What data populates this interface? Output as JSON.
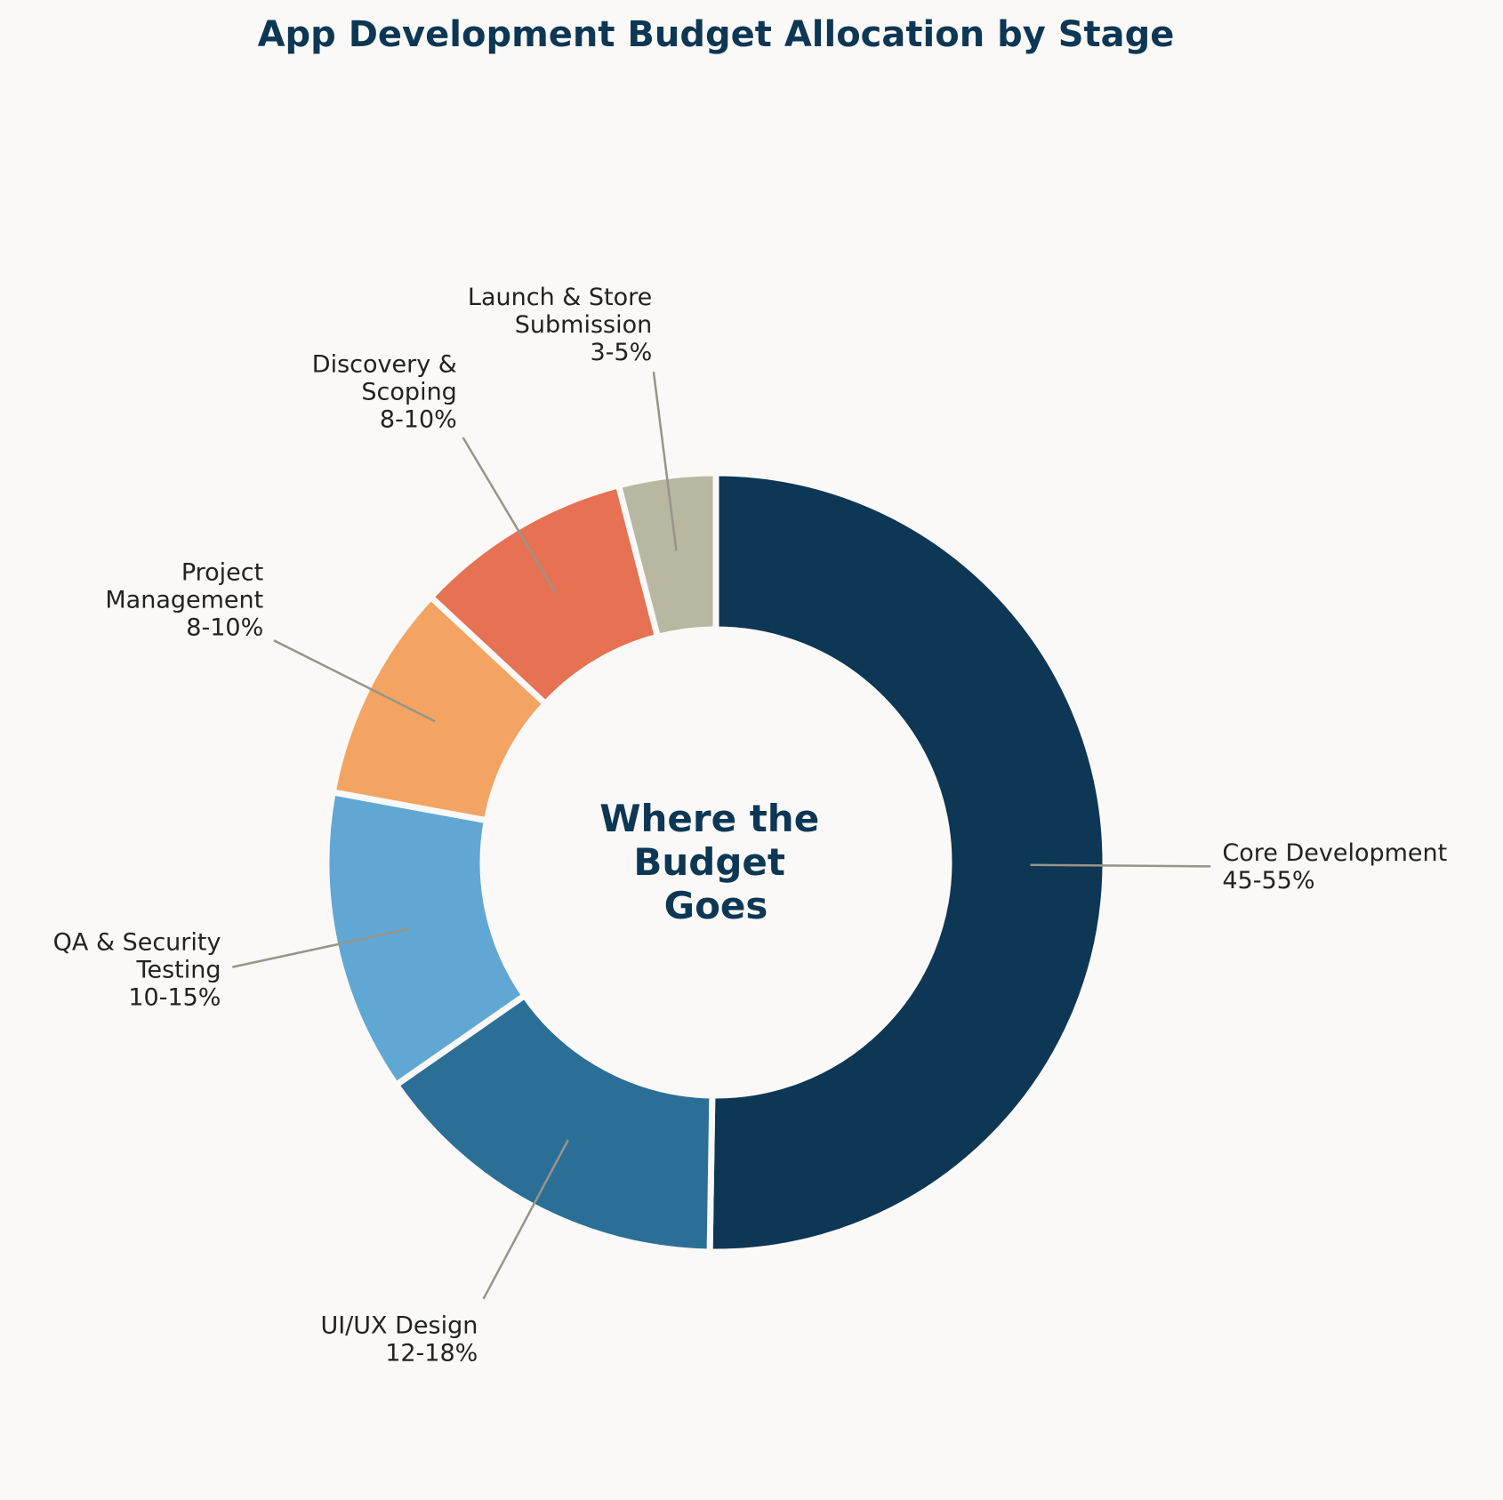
{
  "chart_data": {
    "type": "pie",
    "title": "App Development Budget Allocation by Stage",
    "center_label": [
      "Where the",
      "Budget",
      "Goes"
    ],
    "slices": [
      {
        "name_lines": [
          "Core Development"
        ],
        "range": "45-55%",
        "value": 50,
        "color": "#0d3754"
      },
      {
        "name_lines": [
          "UI/UX Design"
        ],
        "range": "12-18%",
        "value": 15,
        "color": "#2b6f97"
      },
      {
        "name_lines": [
          "QA & Security",
          "Testing"
        ],
        "range": "10-15%",
        "value": 12.5,
        "color": "#61a7d4"
      },
      {
        "name_lines": [
          "Project",
          "Management"
        ],
        "range": "8-10%",
        "value": 9,
        "color": "#f3a463"
      },
      {
        "name_lines": [
          "Discovery &",
          "Scoping"
        ],
        "range": "8-10%",
        "value": 9,
        "color": "#e67153"
      },
      {
        "name_lines": [
          "Launch & Store",
          "Submission"
        ],
        "range": "3-5%",
        "value": 4,
        "color": "#b8b7a2"
      }
    ]
  }
}
